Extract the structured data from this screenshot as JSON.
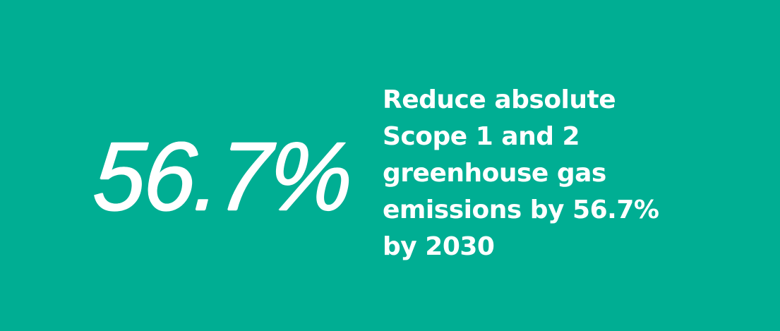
{
  "colors": {
    "background": "#00AE93",
    "text": "#FFFFFF"
  },
  "stat": {
    "figure": "56.7%",
    "description_lines": "Reduce absolute\nScope 1 and 2\ngreenhouse gas\nemissions by 56.7%\nby 2030"
  }
}
